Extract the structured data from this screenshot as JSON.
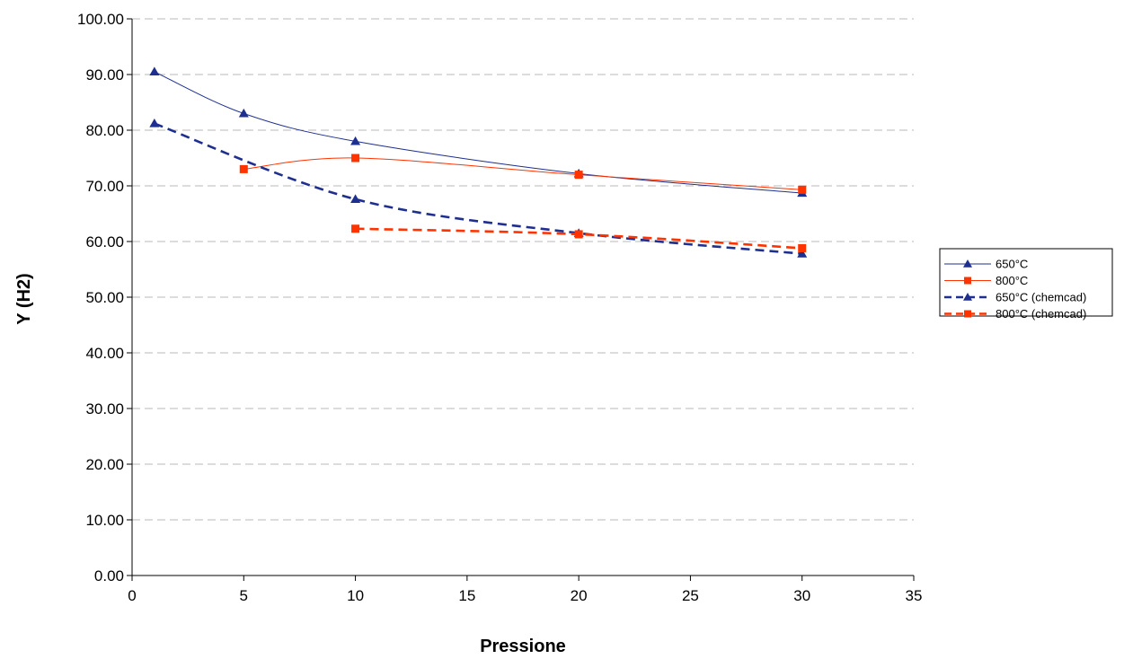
{
  "chart_data": {
    "type": "line",
    "xlabel": "Pressione",
    "ylabel": "Y (H2)",
    "xlim": [
      0,
      35
    ],
    "ylim": [
      0,
      100
    ],
    "x_ticks": [
      "0",
      "5",
      "10",
      "15",
      "20",
      "25",
      "30",
      "35"
    ],
    "y_ticks": [
      "0.00",
      "10.00",
      "20.00",
      "30.00",
      "40.00",
      "50.00",
      "60.00",
      "70.00",
      "80.00",
      "90.00",
      "100.00"
    ],
    "grid": "horizontal dashed",
    "legend_position": "right",
    "series": [
      {
        "name": "650°C",
        "color": "#1f2f8f",
        "marker": "triangle",
        "dashed": false,
        "x": [
          1,
          5,
          10,
          20,
          30
        ],
        "y": [
          90.5,
          83.0,
          78.0,
          72.2,
          68.7
        ]
      },
      {
        "name": "800°C",
        "color": "#ff3300",
        "marker": "square",
        "dashed": false,
        "x": [
          5,
          10,
          20,
          30
        ],
        "y": [
          73.0,
          75.0,
          72.0,
          69.3
        ]
      },
      {
        "name": "650°C (chemcad)",
        "color": "#1f2f8f",
        "marker": "triangle",
        "dashed": true,
        "x": [
          1,
          10,
          20,
          30
        ],
        "y": [
          81.2,
          67.6,
          61.5,
          57.8
        ]
      },
      {
        "name": "800°C (chemcad)",
        "color": "#ff3300",
        "marker": "square",
        "dashed": true,
        "x": [
          10,
          20,
          30
        ],
        "y": [
          62.3,
          61.3,
          58.8
        ]
      }
    ]
  }
}
